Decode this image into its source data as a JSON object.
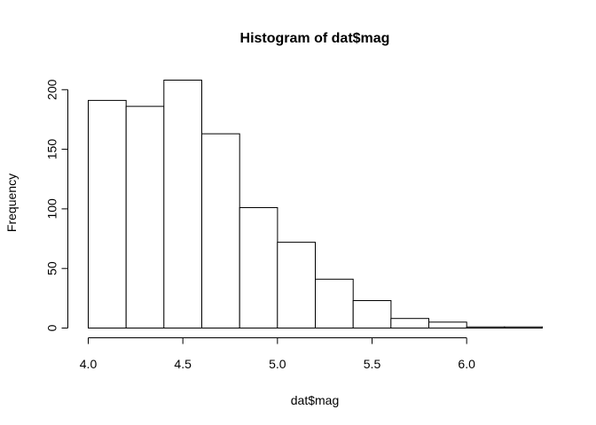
{
  "chart_data": {
    "type": "bar",
    "title": "Histogram of dat$mag",
    "xlabel": "dat$mag",
    "ylabel": "Frequency",
    "bins": [
      {
        "start": 4.0,
        "end": 4.2,
        "count": 191
      },
      {
        "start": 4.2,
        "end": 4.4,
        "count": 186
      },
      {
        "start": 4.4,
        "end": 4.6,
        "count": 208
      },
      {
        "start": 4.6,
        "end": 4.8,
        "count": 163
      },
      {
        "start": 4.8,
        "end": 5.0,
        "count": 101
      },
      {
        "start": 5.0,
        "end": 5.2,
        "count": 72
      },
      {
        "start": 5.2,
        "end": 5.4,
        "count": 41
      },
      {
        "start": 5.4,
        "end": 5.6,
        "count": 23
      },
      {
        "start": 5.6,
        "end": 5.8,
        "count": 8
      },
      {
        "start": 5.8,
        "end": 6.0,
        "count": 5
      },
      {
        "start": 6.0,
        "end": 6.2,
        "count": 1
      },
      {
        "start": 6.2,
        "end": 6.4,
        "count": 1
      }
    ],
    "xlim": [
      4.0,
      6.4
    ],
    "ylim": [
      0,
      208
    ],
    "x_ticks": [
      {
        "value": 4.0,
        "label": "4.0"
      },
      {
        "value": 4.5,
        "label": "4.5"
      },
      {
        "value": 5.0,
        "label": "5.0"
      },
      {
        "value": 5.5,
        "label": "5.5"
      },
      {
        "value": 6.0,
        "label": "6.0"
      }
    ],
    "y_ticks": [
      {
        "value": 0,
        "label": "0"
      },
      {
        "value": 50,
        "label": "50"
      },
      {
        "value": 100,
        "label": "100"
      },
      {
        "value": 150,
        "label": "150"
      },
      {
        "value": 200,
        "label": "200"
      }
    ],
    "grid": false
  }
}
